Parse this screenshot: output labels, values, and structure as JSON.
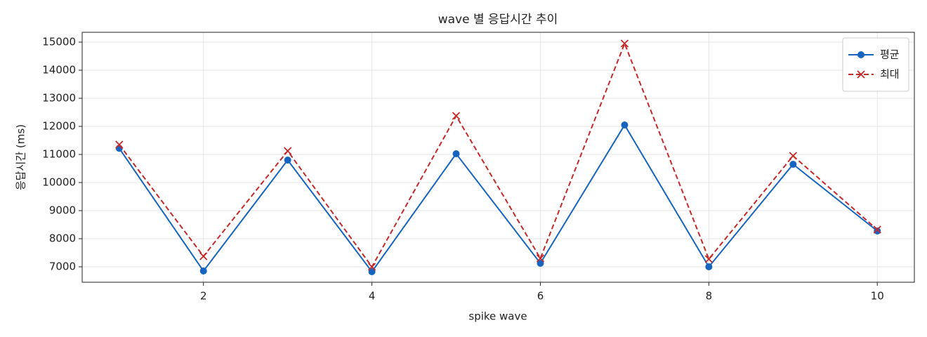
{
  "chart_data": {
    "type": "line",
    "title": "wave 별 응답시간 추이",
    "x_label": "spike wave",
    "y_label": "응답시간 (ms)",
    "x": [
      1,
      2,
      3,
      4,
      5,
      6,
      7,
      8,
      9,
      10
    ],
    "series": [
      {
        "name": "평균",
        "color": "#1565c0",
        "style": "solid",
        "marker": "circle",
        "values": [
          11220,
          6850,
          10800,
          6825,
          11025,
          7125,
          12050,
          7000,
          10650,
          8275
        ]
      },
      {
        "name": "최대",
        "color": "#c62828",
        "style": "dashed",
        "marker": "x",
        "values": [
          11350,
          7375,
          11125,
          7000,
          12375,
          7300,
          14950,
          7275,
          10950,
          8325
        ]
      }
    ],
    "xlim": [
      0.56,
      10.44
    ],
    "xticks": [
      2,
      4,
      6,
      8,
      10
    ],
    "ylim": [
      6450,
      15350
    ],
    "yticks": [
      7000,
      8000,
      9000,
      10000,
      11000,
      12000,
      13000,
      14000,
      15000
    ],
    "grid": true,
    "legend": "upper right"
  }
}
